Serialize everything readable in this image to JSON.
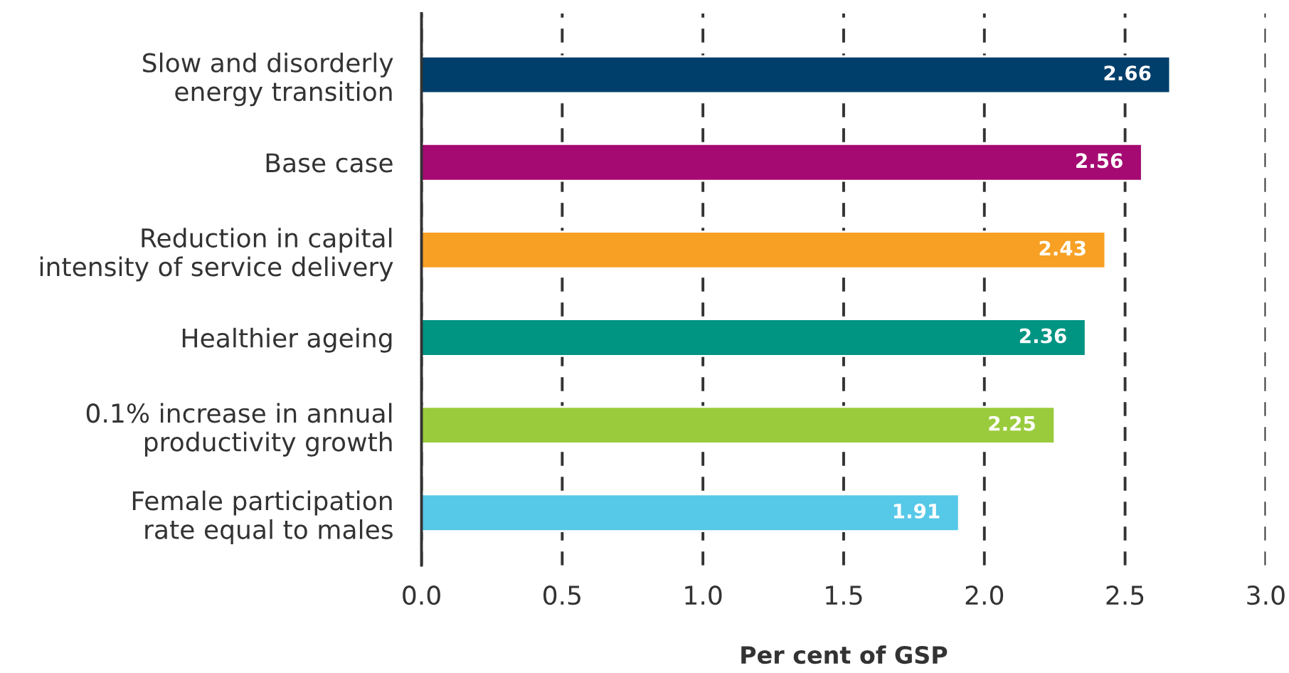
{
  "chart_data": {
    "type": "bar",
    "orientation": "horizontal",
    "xlabel": "Per cent of GSP",
    "categories": [
      "Slow and disorderly\nenergy transition",
      "Base case",
      "Reduction in capital\nintensity of service delivery",
      "Healthier ageing",
      "0.1% increase in annual\nproductivity growth",
      "Female participation\nrate equal to males"
    ],
    "values": [
      2.66,
      2.56,
      2.43,
      2.36,
      2.25,
      1.91
    ],
    "colors": [
      "#003f6b",
      "#a50a72",
      "#f7a024",
      "#009483",
      "#9acb3c",
      "#56c8e8"
    ],
    "xlim": [
      0,
      3
    ],
    "xticks": [
      {
        "value": 0,
        "label": "0.0"
      },
      {
        "value": 0.5,
        "label": "0.5"
      },
      {
        "value": 1,
        "label": "1.0"
      },
      {
        "value": 1.5,
        "label": "1.5"
      },
      {
        "value": 2,
        "label": "2.0"
      },
      {
        "value": 2.5,
        "label": "2.5"
      },
      {
        "value": 3,
        "label": "3.0"
      }
    ],
    "grid": "x",
    "data_labels": true
  }
}
